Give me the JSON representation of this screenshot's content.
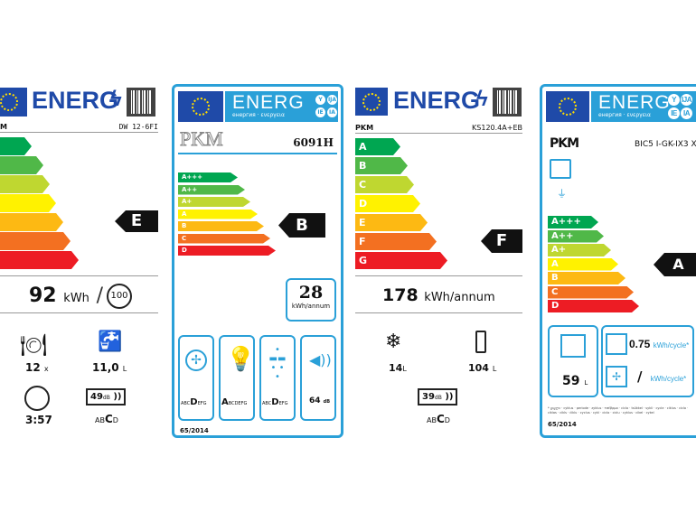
{
  "scale_colors": [
    "#00a651",
    "#50b848",
    "#bfd730",
    "#fff200",
    "#fdb913",
    "#f37021",
    "#ed1c24"
  ],
  "accent": "#2aa0d8",
  "dishwasher": {
    "energy": "ENERG",
    "brand": "M",
    "model": "DW 12-6FI",
    "classes": [
      "",
      "",
      "",
      "",
      "",
      "",
      ""
    ],
    "rating": "E",
    "consumption": "92",
    "unit": "kWh",
    "per": "100",
    "place_settings": "12",
    "place_unit": "x",
    "water": "11,0",
    "water_unit": "L",
    "duration": "3:57",
    "noise": "49",
    "noise_unit": "dB",
    "noise_scale": [
      "AB",
      "C",
      "D"
    ]
  },
  "hood": {
    "energy": "ENERG",
    "sub": "енергия · ενεργεια",
    "codes": [
      "Y",
      "IJA",
      "IE",
      "IA"
    ],
    "model": "6091H",
    "classes": [
      "A+++",
      "A++",
      "A+",
      "A",
      "B",
      "C",
      "D"
    ],
    "rating": "B",
    "consumption": "28",
    "unit": "kWh/annum",
    "fluid": [
      "ABC",
      "D",
      "EFG"
    ],
    "light": [
      "A",
      "BCDEFG"
    ],
    "grease": [
      "ABC",
      "D",
      "EFG"
    ],
    "noise": "64",
    "noise_unit": "dB",
    "regulation": "65/2014"
  },
  "fridge": {
    "energy": "ENERG",
    "brand": "PKM",
    "model": "KS120.4A+EB",
    "classes": [
      "A",
      "B",
      "C",
      "D",
      "E",
      "F",
      "G"
    ],
    "rating": "F",
    "consumption": "178",
    "unit": "kWh/annum",
    "freezer": "14",
    "freezer_unit": "L",
    "fridge_vol": "104",
    "fridge_unit": "L",
    "noise": "39",
    "noise_unit": "dB",
    "noise_scale": [
      "AB",
      "C",
      "D"
    ]
  },
  "oven": {
    "energy": "ENERG",
    "sub": "енергия · ενεργεια",
    "codes": [
      "Y",
      "IJA",
      "IE",
      "IA"
    ],
    "brand": "PKM",
    "model": "BIC5 I-GK-IX3 X",
    "classes": [
      "A+++",
      "A++",
      "A+",
      "A",
      "B",
      "C",
      "D"
    ],
    "rating": "A",
    "volume": "59",
    "volume_unit": "L",
    "conv": "0.75",
    "conv_unit": "kWh/cycle*",
    "fan": "/",
    "fan_unit": "kWh/cycle*",
    "footnote": "* ციკლი · cyklus · periode · zyklus · τσέβρμα · ciclo · tsükkel · sykli · cycle · ciklus · ciclo · ciklas · cikls · ċiklu · cyclus · cykl · ciclo · ciclu · cyklus · cikel · cykel",
    "regulation": "65/2014"
  }
}
